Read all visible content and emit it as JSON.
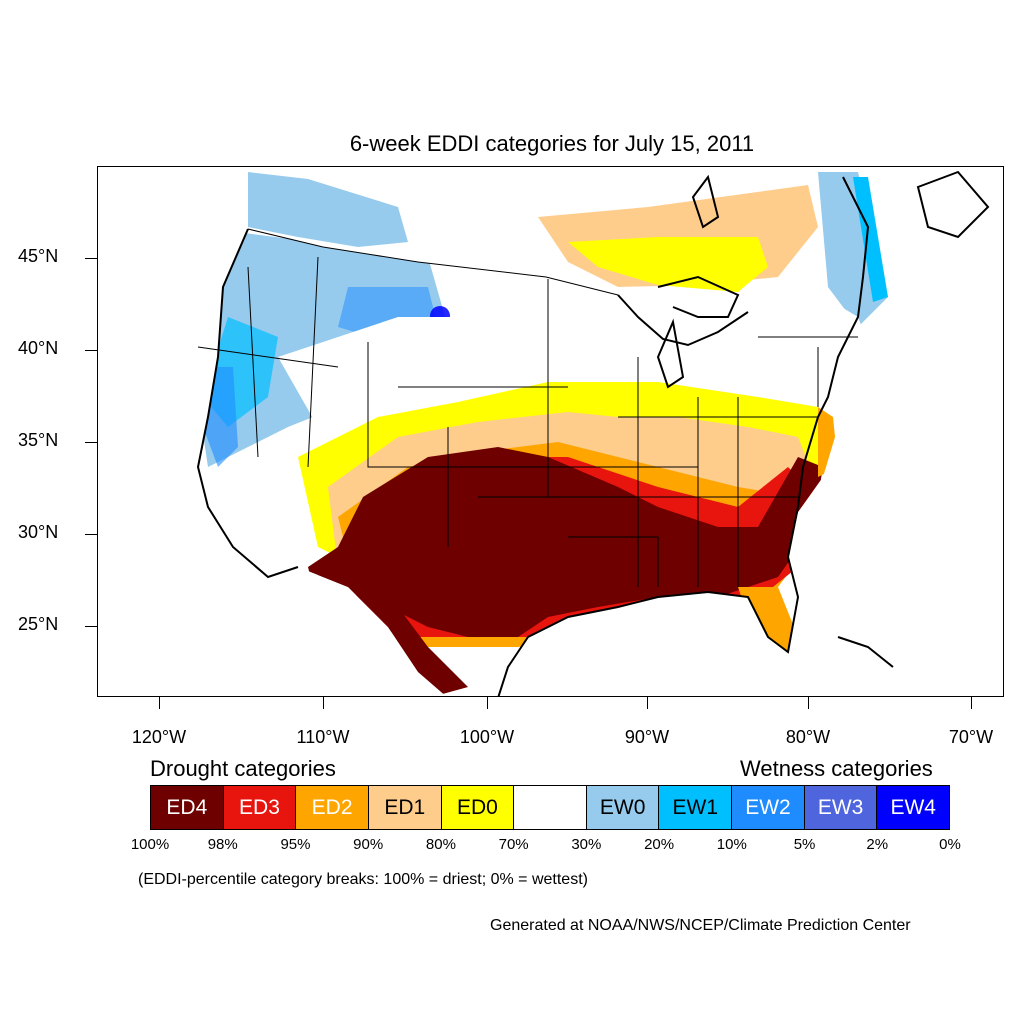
{
  "title": "6-week EDDI categories for July 15, 2011",
  "lat_labels": [
    "45°N",
    "40°N",
    "35°N",
    "30°N",
    "25°N"
  ],
  "lon_labels": [
    "120°W",
    "110°W",
    "100°W",
    "90°W",
    "80°W",
    "70°W"
  ],
  "legend": {
    "drought_heading": "Drought categories",
    "wetness_heading": "Wetness categories",
    "categories": [
      {
        "label": "ED4",
        "color": "#6e0000",
        "text_color": "#ffffff"
      },
      {
        "label": "ED3",
        "color": "#e8140e",
        "text_color": "#ffffff"
      },
      {
        "label": "ED2",
        "color": "#ffa500",
        "text_color": "#ffffff"
      },
      {
        "label": "ED1",
        "color": "#fecd8c",
        "text_color": "#000000"
      },
      {
        "label": "ED0",
        "color": "#ffff00",
        "text_color": "#000000"
      },
      {
        "label": "",
        "color": "#ffffff",
        "text_color": "#000000"
      },
      {
        "label": "EW0",
        "color": "#96cbee",
        "text_color": "#000000"
      },
      {
        "label": "EW1",
        "color": "#00bfff",
        "text_color": "#000000"
      },
      {
        "label": "EW2",
        "color": "#1e8cff",
        "text_color": "#ffffff"
      },
      {
        "label": "EW3",
        "color": "#4f65dd",
        "text_color": "#ffffff"
      },
      {
        "label": "EW4",
        "color": "#0000ff",
        "text_color": "#ffffff"
      }
    ],
    "breaks": [
      "100%",
      "98%",
      "95%",
      "90%",
      "80%",
      "70%",
      "30%",
      "20%",
      "10%",
      "5%",
      "2%",
      "0%"
    ]
  },
  "note": "(EDDI-percentile category breaks: 100% = driest; 0% = wettest)",
  "credit": "Generated at NOAA/NWS/NCEP/Climate Prediction Center"
}
